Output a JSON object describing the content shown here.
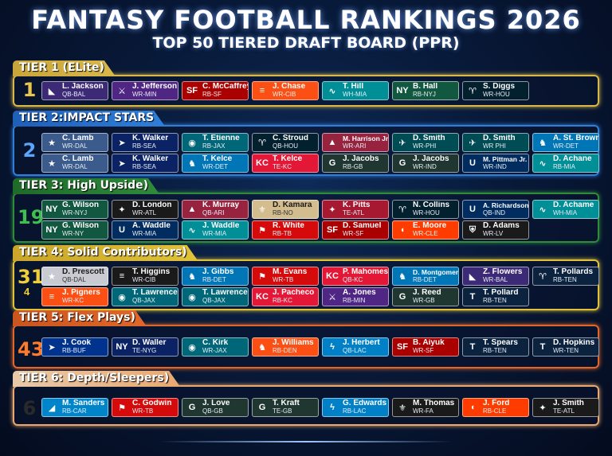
{
  "header": {
    "title": "FANTASY FOOTBALL RANKINGS 2026",
    "subtitle": "TOP 50 TIERED DRAFT BOARD (PPR)"
  },
  "tiers": [
    {
      "label": "TIER 1 (ELite)",
      "number": "1",
      "sub": "",
      "color": "#d9b84a",
      "tab_color": "#c9a43a",
      "num_color": "#e9c54a",
      "rows": [
        [
          {
            "name": "L. Jackson",
            "pos": "QB-BAL",
            "bg": "#3d2a77",
            "icon": "raven-icon"
          },
          {
            "name": "J. Jefferson",
            "pos": "WR-MIN",
            "bg": "#4f2683",
            "icon": "viking-icon"
          },
          {
            "name": "C. McCaffrey",
            "pos": "RB-SF",
            "bg": "#aa0000",
            "icon": "sf-logo-icon"
          },
          {
            "name": "J. Chase",
            "pos": "WR-CIB",
            "bg": "#fb4f14",
            "icon": "tiger-stripe-icon"
          },
          {
            "name": "T. Hill",
            "pos": "WH-MIA",
            "bg": "#008e97",
            "icon": "dolphin-icon"
          },
          {
            "name": "B. Hall",
            "pos": "RB-NYJ",
            "bg": "#125740",
            "icon": "jets-logo-icon"
          },
          {
            "name": "S. Diggs",
            "pos": "WR-HOU",
            "bg": "#03202f",
            "icon": "bull-icon"
          }
        ]
      ]
    },
    {
      "label": "TIER 2:IMPACT STARS",
      "number": "2",
      "sub": "",
      "color": "#2f7fd9",
      "tab_color": "#1f5fb8",
      "num_color": "#5aa6ff",
      "rows": [
        [
          {
            "name": "C. Lamb",
            "pos": "WR-DAL",
            "bg": "#3b5b8c",
            "icon": "star-icon"
          },
          {
            "name": "K. Walker",
            "pos": "RB-SEA",
            "bg": "#0b2265",
            "icon": "seahawk-icon"
          },
          {
            "name": "T. Etienne",
            "pos": "RB-JAX",
            "bg": "#006778",
            "icon": "jaguar-icon"
          },
          {
            "name": "C. Stroud",
            "pos": "QB-HOU",
            "bg": "#03202f",
            "icon": "bull-icon"
          },
          {
            "name": "M. Harrison Jr.",
            "pos": "WR-ARI",
            "bg": "#97233f",
            "icon": "cardinal-icon"
          },
          {
            "name": "D. Smith",
            "pos": "WR-PHI",
            "bg": "#004c54",
            "icon": "eagle-icon"
          },
          {
            "name": "D. Smith",
            "pos": "WR PHI",
            "bg": "#004c54",
            "icon": "eagle-icon"
          },
          {
            "name": "A. St. Brown",
            "pos": "WR-DET",
            "bg": "#0076b6",
            "icon": "lion-icon"
          }
        ],
        [
          {
            "name": "C. Lamb",
            "pos": "WR-DAL",
            "bg": "#3b5b8c",
            "icon": "star-icon"
          },
          {
            "name": "K. Walker",
            "pos": "RB-SEA",
            "bg": "#0b2265",
            "icon": "seahawk-icon"
          },
          {
            "name": "T. Kelce",
            "pos": "WR-DET",
            "bg": "#0076b6",
            "icon": "lion-icon"
          },
          {
            "name": "T. Kelce",
            "pos": "TE-KC",
            "bg": "#e31837",
            "icon": "arrowhead-icon"
          },
          {
            "name": "J. Jacobs",
            "pos": "RB-GB",
            "bg": "#203731",
            "icon": "g-logo-icon"
          },
          {
            "name": "J. Jacobs",
            "pos": "WR-IND",
            "bg": "#203731",
            "icon": "g-logo-icon"
          },
          {
            "name": "M. Pittman Jr.",
            "pos": "WR-IND",
            "bg": "#002c5f",
            "icon": "horseshoe-icon"
          },
          {
            "name": "D. Achane",
            "pos": "RB-MIA",
            "bg": "#008e97",
            "icon": "dolphin-icon"
          }
        ]
      ]
    },
    {
      "label": "TIER 3: High Upside)",
      "number": "19",
      "sub": "",
      "color": "#2f8a3a",
      "tab_color": "#1f6a2a",
      "num_color": "#3fbf4f",
      "rows": [
        [
          {
            "name": "G. Wilson",
            "pos": "WR-NYJ",
            "bg": "#125740",
            "icon": "jets-logo-icon"
          },
          {
            "name": "D. London",
            "pos": "WR-ATL",
            "bg": "#1a1a1a",
            "icon": "falcon-icon"
          },
          {
            "name": "K. Murray",
            "pos": "QB-ARI",
            "bg": "#97233f",
            "icon": "cardinal-icon"
          },
          {
            "name": "D. Kamara",
            "pos": "RB-NO",
            "bg": "#d3bc8d",
            "icon": "fleur-de-lis-icon"
          },
          {
            "name": "K. Pitts",
            "pos": "TE-ATL",
            "bg": "#a71930",
            "icon": "falcon-icon"
          },
          {
            "name": "N. Collins",
            "pos": "WR-HOU",
            "bg": "#03202f",
            "icon": "bull-icon"
          },
          {
            "name": "A. Richardson",
            "pos": "QB-IND",
            "bg": "#002c5f",
            "icon": "horseshoe-icon"
          },
          {
            "name": "D. Achame",
            "pos": "WH-MIA",
            "bg": "#008e97",
            "icon": "dolphin-icon"
          }
        ],
        [
          {
            "name": "G. Wilson",
            "pos": "WR-NY",
            "bg": "#125740",
            "icon": "jets-logo-icon"
          },
          {
            "name": "A. Waddle",
            "pos": "WR-MIA",
            "bg": "#002c5f",
            "icon": "horseshoe-icon"
          },
          {
            "name": "J. Waddle",
            "pos": "WR-MIA",
            "bg": "#008e97",
            "icon": "dolphin-icon"
          },
          {
            "name": "R. White",
            "pos": "RB-TB",
            "bg": "#d50a0a",
            "icon": "flag-icon"
          },
          {
            "name": "D. Samuel",
            "pos": "WR-SF",
            "bg": "#aa0000",
            "icon": "sf-logo-icon"
          },
          {
            "name": "E. Moore",
            "pos": "WR-CLE",
            "bg": "#ff3c00",
            "icon": "helmet-icon"
          },
          {
            "name": "D. Adams",
            "pos": "WR-LV",
            "bg": "#1a1a1a",
            "icon": "shield-icon"
          }
        ]
      ]
    },
    {
      "label": "TIER 4: Solid Contributors)",
      "number": "31",
      "sub": "4",
      "color": "#e0c23a",
      "tab_color": "#c9a52a",
      "num_color": "#f1cf3a",
      "rows": [
        [
          {
            "name": "D. Prescott",
            "pos": "QB-DAL",
            "bg": "#c8ccd2",
            "icon": "star-icon"
          },
          {
            "name": "T. Higgins",
            "pos": "WR-CIB",
            "bg": "#1a1a1a",
            "icon": "tiger-stripe-icon"
          },
          {
            "name": "J. Gibbs",
            "pos": "RB-DET",
            "bg": "#0076b6",
            "icon": "lion-icon"
          },
          {
            "name": "M. Evans",
            "pos": "WR-TB",
            "bg": "#d50a0a",
            "icon": "flag-icon"
          },
          {
            "name": "P. Mahomes",
            "pos": "QB-KC",
            "bg": "#e31837",
            "icon": "arrowhead-icon"
          },
          {
            "name": "D. Montgomery",
            "pos": "RB-DET",
            "bg": "#0076b6",
            "icon": "lion-icon"
          },
          {
            "name": "Z. Flowers",
            "pos": "WR-BAL",
            "bg": "#3d2a77",
            "icon": "raven-icon"
          },
          {
            "name": "T. Pollards",
            "pos": "RB-TEN",
            "bg": "#0c2340",
            "icon": "bull-icon"
          }
        ],
        [
          {
            "name": "J. Pigners",
            "pos": "WR-KC",
            "bg": "#fb4f14",
            "icon": "tiger-stripe-icon"
          },
          {
            "name": "T. Lawrence",
            "pos": "QB-JAX",
            "bg": "#006778",
            "icon": "jaguar-icon"
          },
          {
            "name": "T. Lawrence",
            "pos": "QB-JAX",
            "bg": "#006778",
            "icon": "jaguar-icon"
          },
          {
            "name": "J. Pacheco",
            "pos": "RB-KC",
            "bg": "#e31837",
            "icon": "arrowhead-icon"
          },
          {
            "name": "A. Jones",
            "pos": "RB-MIN",
            "bg": "#4f2683",
            "icon": "viking-icon"
          },
          {
            "name": "J. Reed",
            "pos": "WR-GB",
            "bg": "#203731",
            "icon": "g-logo-icon"
          },
          {
            "name": "T. Pollard",
            "pos": "RB-TEN",
            "bg": "#0c2340",
            "icon": "sword-icon"
          }
        ]
      ]
    },
    {
      "label": "TIER 5: Flex Plays)",
      "number": "43",
      "sub": "",
      "color": "#e0672a",
      "tab_color": "#c9551f",
      "num_color": "#ff7a2a",
      "rows": [
        [
          {
            "name": "J. Cook",
            "pos": "RB-BUF",
            "bg": "#00338d",
            "icon": "bison-icon"
          },
          {
            "name": "D. Waller",
            "pos": "TE-NYG",
            "bg": "#0b2265",
            "icon": "ny-logo-icon"
          },
          {
            "name": "C. Kirk",
            "pos": "WR-JAX",
            "bg": "#006778",
            "icon": "jaguar-icon"
          },
          {
            "name": "J. Williams",
            "pos": "RB-DEN",
            "bg": "#fb4f14",
            "icon": "horse-icon"
          },
          {
            "name": "J. Herbert",
            "pos": "QB-LAC",
            "bg": "#0080c6",
            "icon": "bolt-icon"
          },
          {
            "name": "B. Aiyuk",
            "pos": "WR-SF",
            "bg": "#aa0000",
            "icon": "sf-logo-icon"
          },
          {
            "name": "T. Spears",
            "pos": "RB-TEN",
            "bg": "#0c2340",
            "icon": "sword-icon"
          },
          {
            "name": "D. Hopkins",
            "pos": "WR-TEN",
            "bg": "#0c2340",
            "icon": "sword-icon"
          }
        ]
      ]
    },
    {
      "label": "TIER 6: Depth/Sleepers)",
      "number": "6",
      "sub": "",
      "color": "#e9a870",
      "tab_color": "#e7c9a9",
      "num_color": "#2a2a2a",
      "rows": [
        [
          {
            "name": "M. Sanders",
            "pos": "RB-CAR",
            "bg": "#0085ca",
            "icon": "panther-icon"
          },
          {
            "name": "C. Godwin",
            "pos": "WR-TB",
            "bg": "#d50a0a",
            "icon": "flag-icon"
          },
          {
            "name": "J. Love",
            "pos": "QB-GB",
            "bg": "#203731",
            "icon": "g-logo-icon"
          },
          {
            "name": "T. Kraft",
            "pos": "TE-GB",
            "bg": "#203731",
            "icon": "g-logo-icon"
          },
          {
            "name": "G. Edwards",
            "pos": "RB-LAC",
            "bg": "#0080c6",
            "icon": "bolt-icon"
          },
          {
            "name": "M. Thomas",
            "pos": "WR-FA",
            "bg": "#1a1a1a",
            "icon": "fleur-de-lis-icon"
          },
          {
            "name": "J. Ford",
            "pos": "RB-CLE",
            "bg": "#ff3c00",
            "icon": "helmet-icon"
          },
          {
            "name": "J. Smith",
            "pos": "TE-ATL",
            "bg": "#1a1a1a",
            "icon": "falcon-icon"
          }
        ]
      ]
    }
  ]
}
